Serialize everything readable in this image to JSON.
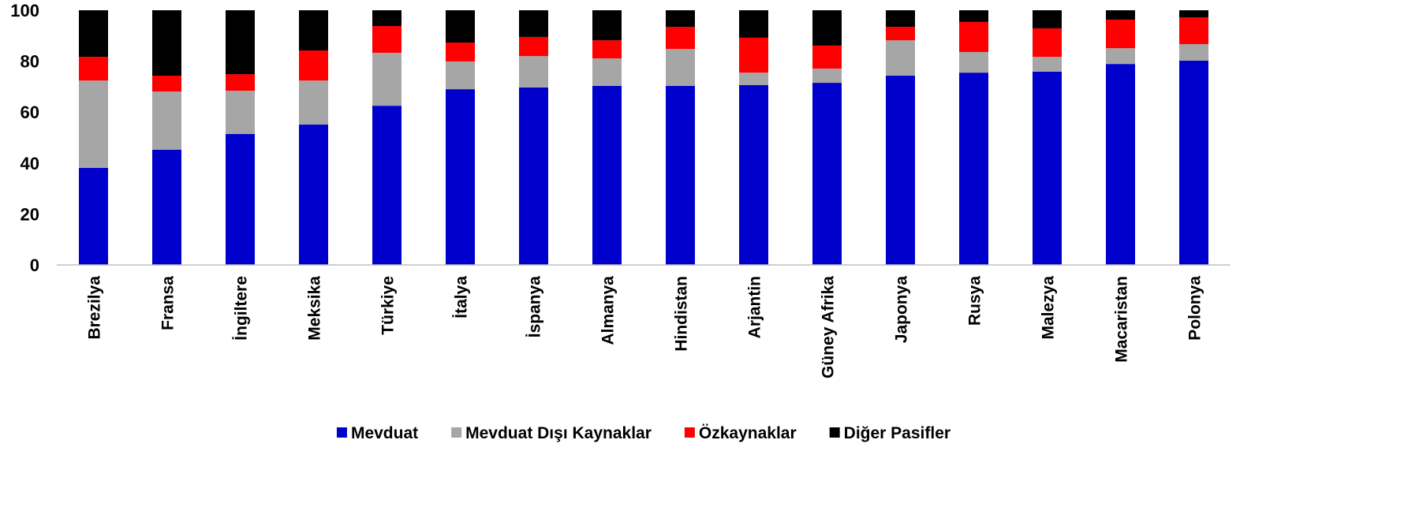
{
  "chart_data": {
    "type": "stacked_bar",
    "categories": [
      "Brezilya",
      "Fransa",
      "İngiltere",
      "Meksika",
      "Türkiye",
      "İtalya",
      "İspanya",
      "Almanya",
      "Hindistan",
      "Arjantin",
      "Güney Afrika",
      "Japonya",
      "Rusya",
      "Malezya",
      "Macaristan",
      "Polonya"
    ],
    "series": [
      {
        "name": "Mevduat",
        "color": "#0000cc",
        "values": [
          38.1,
          45.2,
          51.4,
          55.1,
          62.5,
          69.0,
          69.7,
          70.3,
          70.3,
          70.6,
          71.5,
          74.3,
          75.5,
          75.9,
          78.9,
          80.2
        ]
      },
      {
        "name": "Mevduat Dışı Kaynaklar",
        "color": "#a6a6a6",
        "values": [
          34.3,
          22.9,
          17.0,
          17.3,
          20.8,
          10.9,
          12.3,
          10.8,
          14.5,
          4.9,
          5.6,
          13.9,
          8.1,
          5.8,
          6.2,
          6.5
        ]
      },
      {
        "name": "Özkaynaklar",
        "color": "#ff0000",
        "values": [
          9.3,
          6.2,
          6.5,
          11.8,
          10.5,
          7.4,
          7.5,
          7.1,
          8.7,
          13.7,
          9.0,
          5.3,
          11.8,
          11.2,
          11.2,
          10.5
        ]
      },
      {
        "name": "Diğer Pasifler",
        "color": "#000000",
        "values": [
          18.3,
          25.7,
          25.1,
          15.8,
          6.2,
          12.7,
          10.5,
          11.8,
          6.5,
          10.8,
          13.9,
          6.5,
          4.6,
          7.1,
          3.7,
          2.8
        ]
      }
    ],
    "ylim": [
      0,
      100
    ],
    "yticks": [
      0,
      20,
      40,
      60,
      80,
      100
    ],
    "grid": false,
    "legend": "bottom"
  }
}
